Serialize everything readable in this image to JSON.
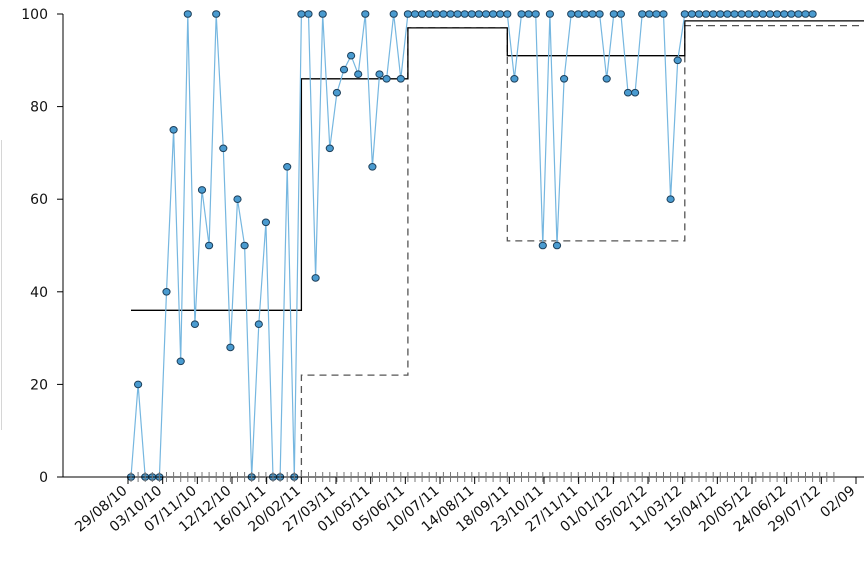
{
  "chart_data": {
    "type": "line",
    "ylim": [
      0,
      100
    ],
    "yticks": [
      0,
      20,
      40,
      60,
      80,
      100
    ],
    "xtick_labels": [
      "29/08/10",
      "03/10/10",
      "07/11/10",
      "12/12/10",
      "16/01/11",
      "20/02/11",
      "27/03/11",
      "01/05/11",
      "05/06/11",
      "10/07/11",
      "14/08/11",
      "18/09/11",
      "23/10/11",
      "27/11/11",
      "01/01/12",
      "05/02/12",
      "11/03/12",
      "15/04/12",
      "20/05/12",
      "24/06/12",
      "29/07/12",
      "02/09"
    ],
    "grid": false,
    "colors": {
      "series": "#76b7e0",
      "point_fill": "#4a9bd0",
      "point_edge": "#1d3f5a",
      "step_solid": "#000000",
      "step_dashed": "#555555"
    },
    "series": [
      {
        "style": "points-and-lines",
        "values": [
          0,
          20,
          0,
          0,
          0,
          40,
          75,
          25,
          100,
          33,
          62,
          50,
          100,
          71,
          28,
          60,
          50,
          0,
          33,
          55,
          0,
          0,
          67,
          0,
          100,
          100,
          43,
          100,
          71,
          83,
          88,
          91,
          87,
          100,
          67,
          87,
          86,
          100,
          86,
          100,
          100,
          100,
          100,
          100,
          100,
          100,
          100,
          100,
          100,
          100,
          100,
          100,
          100,
          100,
          86,
          100,
          100,
          100,
          50,
          100,
          50,
          86,
          100,
          100,
          100,
          100,
          100,
          86,
          100,
          100,
          83,
          83,
          100,
          100,
          100,
          100,
          60,
          90,
          100,
          100,
          100,
          100,
          100,
          100,
          100,
          100,
          100,
          100,
          100,
          100,
          100,
          100,
          100,
          100,
          100,
          100,
          100
        ]
      },
      {
        "style": "solid-step",
        "segments": [
          {
            "from_index": 0,
            "to_index": 24,
            "value": 36
          },
          {
            "from_index": 24,
            "to_index": 39,
            "value": 86
          },
          {
            "from_index": 39,
            "to_index": 53,
            "value": 97
          },
          {
            "from_index": 53,
            "to_index": 78,
            "value": 91
          },
          {
            "from_index": 78,
            "to_index": 96,
            "value": 98.5
          }
        ]
      },
      {
        "style": "dashed-step",
        "segments": [
          {
            "from_index": 24,
            "to_index": 39,
            "value": 22
          },
          {
            "from_index": 39,
            "to_index": 53,
            "value": 97
          },
          {
            "from_index": 53,
            "to_index": 78,
            "value": 51
          },
          {
            "from_index": 78,
            "to_index": 96,
            "value": 97.5
          }
        ]
      }
    ]
  }
}
